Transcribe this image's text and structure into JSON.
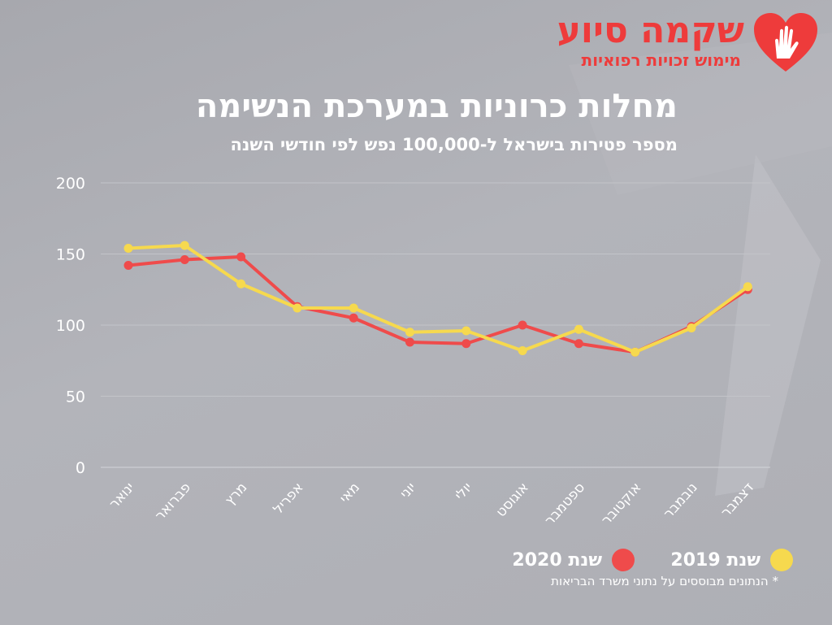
{
  "logo": {
    "name": "שקמה סיוע",
    "tagline": "מימוש זכויות רפואיות",
    "icon": "heart-hand-icon",
    "color": "#ee3b3b"
  },
  "header": {
    "title": "מחלות כרוניות במערכת הנשימה",
    "subtitle": "מספר פטירות בישראל ל-100,000 נפש לפי חודשי השנה"
  },
  "chart_data": {
    "type": "line",
    "categories": [
      "ינואר",
      "פברואר",
      "מרץ",
      "אפריל",
      "מאי",
      "יוני",
      "יולי",
      "אוגוסט",
      "ספטמבר",
      "אוקטובר",
      "נובמבר",
      "דצמבר"
    ],
    "series": [
      {
        "name": "שנת 2020",
        "color": "#ef4b4b",
        "values": [
          142,
          146,
          148,
          113,
          105,
          88,
          87,
          100,
          87,
          81,
          99,
          125
        ]
      },
      {
        "name": "שנת 2019",
        "color": "#f6d94e",
        "values": [
          154,
          156,
          129,
          112,
          112,
          95,
          96,
          82,
          97,
          81,
          98,
          127
        ]
      }
    ],
    "yticks": [
      0,
      50,
      100,
      150,
      200
    ],
    "ylim": [
      0,
      200
    ],
    "grid": true,
    "legend_position": "bottom-right"
  },
  "legend": [
    {
      "label": "שנת 2019",
      "color": "#f6d94e"
    },
    {
      "label": "שנת 2020",
      "color": "#ef4b4b"
    }
  ],
  "footnote": "* הנתונים מבוססים על נתוני משרד הבריאות"
}
